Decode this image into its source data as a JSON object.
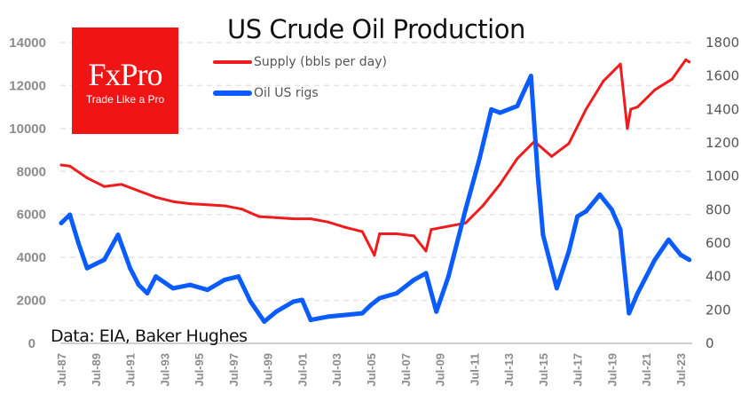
{
  "chart_data": {
    "type": "line",
    "title": "US Crude Oil Production",
    "source": "Data: EIA, Baker Hughes",
    "logo": {
      "brand": "FxPro",
      "tagline": "Trade Like a Pro"
    },
    "legend_position": "top-left",
    "y_left": {
      "ticks": [
        0,
        2000,
        4000,
        6000,
        8000,
        10000,
        12000,
        14000
      ],
      "ylim": [
        0,
        14000
      ]
    },
    "y_right": {
      "ticks": [
        0,
        200,
        400,
        600,
        800,
        1000,
        1200,
        1400,
        1600,
        1800
      ],
      "ylim": [
        0,
        1800
      ]
    },
    "x_ticks": [
      "Jul-87",
      "Jul-89",
      "Jul-91",
      "Jul-93",
      "Jul-95",
      "Jul-97",
      "Jul-99",
      "Jul-01",
      "Jul-03",
      "Jul-05",
      "Jul-07",
      "Jul-09",
      "Jul-11",
      "Jul-13",
      "Jul-15",
      "Jul-17",
      "Jul-19",
      "Jul-21",
      "Jul-23"
    ],
    "xlim": [
      1987.5,
      2024.2
    ],
    "series": [
      {
        "name": "Supply (bbls per day)",
        "axis": "left",
        "color": "#ee1c1c",
        "x": [
          1987.5,
          1988,
          1989,
          1990,
          1991,
          1992,
          1993,
          1994,
          1995,
          1996,
          1997,
          1998,
          1999,
          2000,
          2001,
          2002,
          2003,
          2004,
          2005,
          2005.7,
          2006,
          2007,
          2008,
          2008.7,
          2009,
          2010,
          2011,
          2012,
          2013,
          2014,
          2015,
          2016,
          2017,
          2018,
          2019,
          2020,
          2020.4,
          2020.6,
          2021,
          2022,
          2023,
          2023.8,
          2024
        ],
        "values": [
          8300,
          8250,
          7700,
          7300,
          7400,
          7100,
          6800,
          6600,
          6500,
          6450,
          6400,
          6250,
          5900,
          5850,
          5800,
          5800,
          5650,
          5400,
          5200,
          4100,
          5100,
          5100,
          5000,
          4300,
          5300,
          5450,
          5600,
          6400,
          7400,
          8600,
          9400,
          8700,
          9300,
          10900,
          12200,
          13000,
          10000,
          10900,
          11000,
          11800,
          12300,
          13200,
          13100
        ]
      },
      {
        "name": "Oil US rigs",
        "axis": "right",
        "color": "#0a5cff",
        "x": [
          1987.5,
          1988,
          1988.5,
          1989,
          1990,
          1990.8,
          1991.5,
          1992,
          1992.5,
          1993,
          1994,
          1995,
          1996,
          1997,
          1997.8,
          1998.5,
          1999.3,
          2000,
          2001,
          2001.5,
          2002,
          2003,
          2004,
          2005,
          2005.5,
          2006,
          2007,
          2008,
          2008.7,
          2009.3,
          2010,
          2011,
          2011.8,
          2012.5,
          2013,
          2014,
          2014.8,
          2015.2,
          2015.5,
          2016.3,
          2017,
          2017.5,
          2018,
          2018.8,
          2019.5,
          2020,
          2020.5,
          2021,
          2022,
          2022.8,
          2023.5,
          2024
        ],
        "values": [
          720,
          770,
          600,
          450,
          500,
          650,
          450,
          350,
          300,
          400,
          330,
          350,
          320,
          380,
          400,
          250,
          130,
          190,
          250,
          260,
          140,
          160,
          170,
          180,
          230,
          270,
          300,
          380,
          420,
          190,
          400,
          800,
          1100,
          1400,
          1380,
          1420,
          1600,
          1000,
          650,
          330,
          550,
          760,
          790,
          890,
          800,
          680,
          180,
          300,
          500,
          620,
          530,
          500
        ]
      }
    ]
  }
}
